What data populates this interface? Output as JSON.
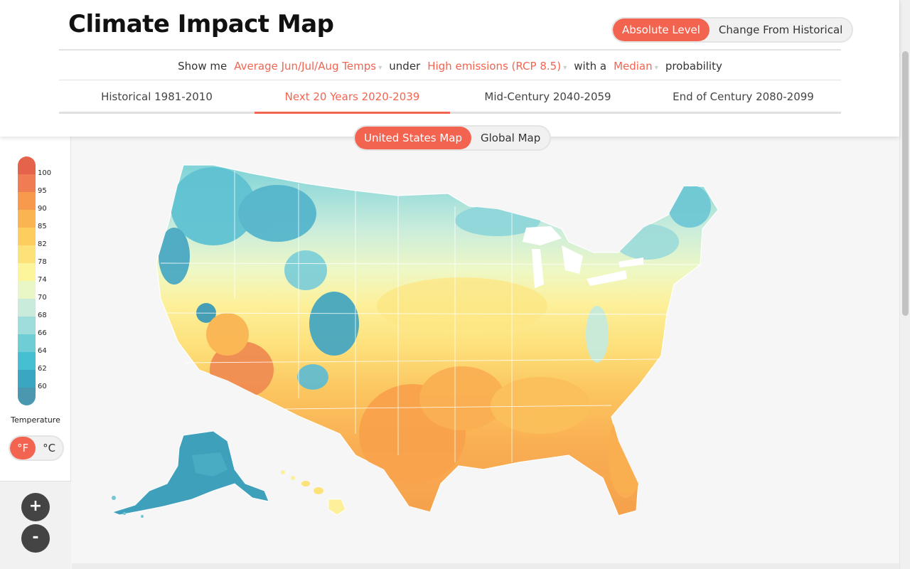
{
  "title": "Climate Impact Map",
  "level_toggle": {
    "options": [
      "Absolute Level",
      "Change From Historical"
    ],
    "active": "Absolute Level"
  },
  "query": {
    "show_me": "Show me",
    "metric": "Average Jun/Jul/Aug Temps",
    "under": "under",
    "scenario": "High emissions (RCP 8.5)",
    "with_a": "with a",
    "probability_value": "Median",
    "probability": "probability"
  },
  "period_tabs": [
    {
      "label": "Historical 1981-2010"
    },
    {
      "label": "Next 20 Years 2020-2039"
    },
    {
      "label": "Mid-Century 2040-2059"
    },
    {
      "label": "End of Century 2080-2099"
    }
  ],
  "active_tab": "Next 20 Years 2020-2039",
  "map_toggle": {
    "options": [
      "United States Map",
      "Global Map"
    ],
    "active": "United States Map"
  },
  "legend": {
    "labels": [
      "100",
      "95",
      "90",
      "85",
      "82",
      "78",
      "74",
      "70",
      "68",
      "66",
      "64",
      "62",
      "60"
    ],
    "colors": [
      "#e5634a",
      "#f07c54",
      "#f79a4d",
      "#fab552",
      "#fdce5e",
      "#fde27a",
      "#fdf59b",
      "#e9f7c7",
      "#c8ebdc",
      "#9fdcdc",
      "#6fcdd6",
      "#47bfd2",
      "#3aa6bf",
      "#4a98b0"
    ]
  },
  "temperature_label": "Temperature",
  "unit_toggle": {
    "options": [
      "°F",
      "°C"
    ],
    "active": "°F"
  },
  "zoom": {
    "in": "+",
    "out": "-"
  },
  "colors": {
    "accent": "#f36450"
  }
}
